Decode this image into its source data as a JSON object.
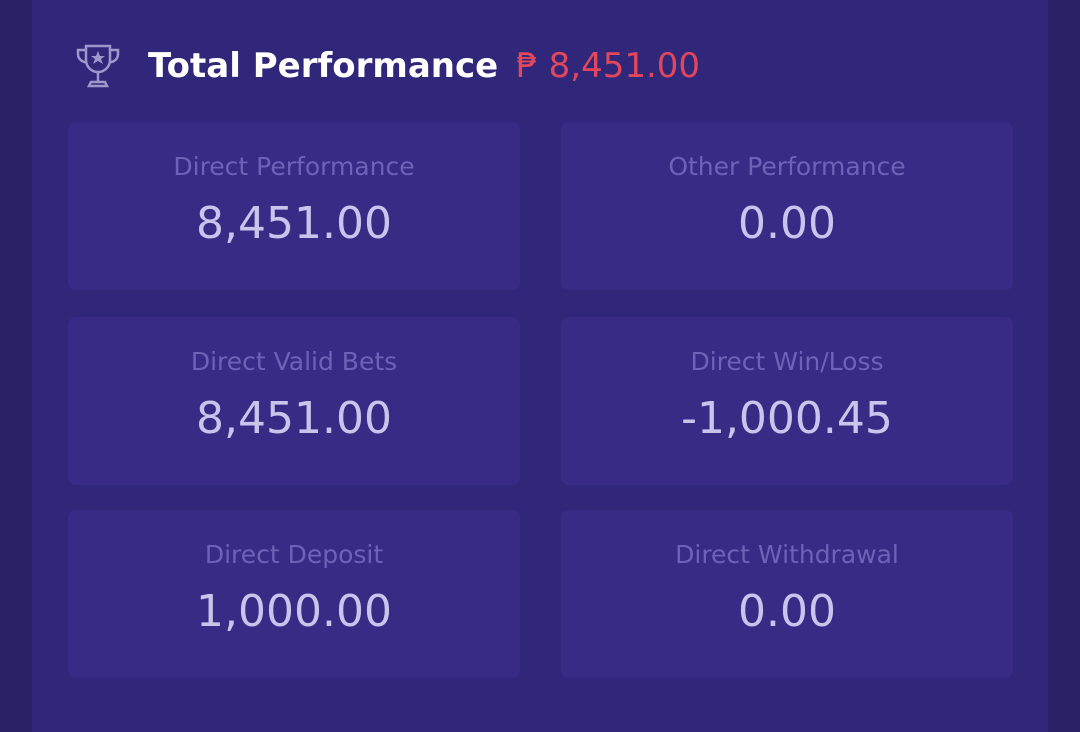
{
  "header": {
    "title": "Total Performance",
    "amount": "₱ 8,451.00"
  },
  "cards": [
    {
      "label": "Direct Performance",
      "value": "8,451.00"
    },
    {
      "label": "Other Performance",
      "value": "0.00"
    },
    {
      "label": "Direct Valid Bets",
      "value": "8,451.00"
    },
    {
      "label": "Direct Win/Loss",
      "value": "-1,000.45"
    },
    {
      "label": "Direct Deposit",
      "value": "1,000.00"
    },
    {
      "label": "Direct Withdrawal",
      "value": "0.00"
    }
  ]
}
